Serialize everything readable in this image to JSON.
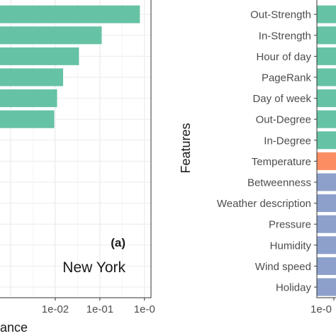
{
  "chart_data": [
    {
      "type": "bar",
      "orientation": "horizontal",
      "panel_tag": "(a)",
      "annotation": "New York",
      "xlabel": "ance",
      "x_scale": "log",
      "xlim": [
        0.0004,
        1.4
      ],
      "x_ticks": [
        {
          "value": 0.01,
          "label": "1e-02"
        },
        {
          "value": 0.1,
          "label": "1e-01"
        },
        {
          "value": 1,
          "label": "1e-0"
        }
      ],
      "values": [
        0.79,
        0.11,
        0.034,
        0.015,
        0.011,
        0.0095
      ],
      "bar_color": "#66c2a5",
      "grid": true
    },
    {
      "type": "bar",
      "orientation": "horizontal",
      "ylabel": "Features",
      "categories": [
        "Out-Strength",
        "In-Strength",
        "Hour of day",
        "PageRank",
        "Day of week",
        "Out-Degree",
        "In-Degree",
        "Temperature",
        "Betweenness",
        "Weather description",
        "Pressure",
        "Humidity",
        "Wind speed",
        "Holiday"
      ],
      "category_colors": [
        "#66c2a5",
        "#66c2a5",
        "#66c2a5",
        "#66c2a5",
        "#66c2a5",
        "#66c2a5",
        "#66c2a5",
        "#fc8d62",
        "#8da0cb",
        "#8da0cb",
        "#8da0cb",
        "#8da0cb",
        "#8da0cb",
        "#8da0cb"
      ],
      "x_ticks": [
        {
          "label": "1e-0"
        }
      ],
      "grid": true
    }
  ]
}
